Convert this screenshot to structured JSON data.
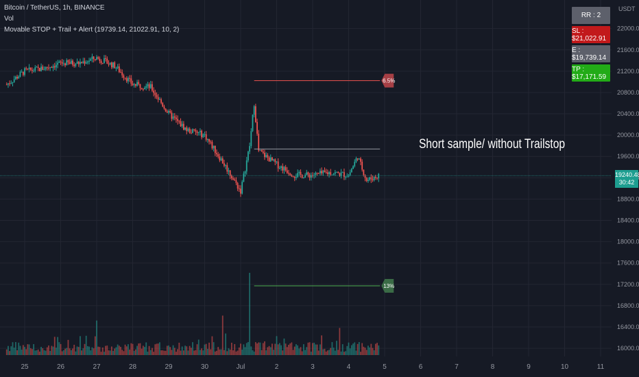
{
  "header": {
    "symbol_line": "Bitcoin / TetherUS, 1h, BINANCE",
    "volume_label": "Vol",
    "indicator_line": "Movable STOP + Trail + Alert (19739.14, 21022.91, 10, 2)"
  },
  "info_panel": {
    "rr": {
      "label": "RR : 2",
      "color": "#5d606b"
    },
    "sl": {
      "label": "SL : $21,022.91",
      "color": "#c2191b"
    },
    "entry": {
      "label": "E : $19,739.14",
      "color": "#5d606b"
    },
    "tp": {
      "label": "TP : $17,171.59",
      "color": "#22ab17"
    }
  },
  "annotation": "Short sample/ without Trailstop",
  "current_price": {
    "price": "19240.48",
    "countdown": "30:42",
    "value": 19240.48
  },
  "colors": {
    "up": "#26a69a",
    "down": "#ef5350",
    "background": "#161a25",
    "grid": "#232632"
  },
  "chart_data": {
    "type": "candlestick",
    "y_axis": {
      "unit": "USDT",
      "ticks": [
        22000,
        21600,
        21200,
        20800,
        20400,
        20000,
        19600,
        19200,
        18800,
        18400,
        18000,
        17600,
        17200,
        16800,
        16400,
        16000
      ],
      "range": [
        15950,
        22150
      ]
    },
    "x_axis": {
      "ticks": [
        "25",
        "26",
        "27",
        "28",
        "29",
        "30",
        "Jul",
        "2",
        "3",
        "4",
        "5",
        "6",
        "7",
        "8",
        "9",
        "10",
        "11"
      ],
      "range_days": [
        "Jun 25",
        "Jul 11"
      ]
    },
    "levels": [
      {
        "name": "stop",
        "price": 21022.91,
        "label": "6.5%",
        "color": "#ef5350"
      },
      {
        "name": "entry",
        "price": 19739.14,
        "color": "#9598a1"
      },
      {
        "name": "take_profit",
        "price": 17171.59,
        "label": "13%",
        "color": "#4caf50"
      }
    ],
    "close_path": [
      {
        "day": "Jun 24 12:00",
        "price": 20950
      },
      {
        "day": "Jun 25 00:00",
        "price": 21200
      },
      {
        "day": "Jun 25 12:00",
        "price": 21250
      },
      {
        "day": "Jun 26 00:00",
        "price": 21350
      },
      {
        "day": "Jun 26 12:00",
        "price": 21350
      },
      {
        "day": "Jun 27 00:00",
        "price": 21450
      },
      {
        "day": "Jun 27 12:00",
        "price": 21300
      },
      {
        "day": "Jun 28 00:00",
        "price": 20950
      },
      {
        "day": "Jun 28 12:00",
        "price": 20900
      },
      {
        "day": "Jun 29 00:00",
        "price": 20400
      },
      {
        "day": "Jun 29 12:00",
        "price": 20100
      },
      {
        "day": "Jun 30 00:00",
        "price": 20000
      },
      {
        "day": "Jun 30 12:00",
        "price": 19500
      },
      {
        "day": "Jul 1 00:00",
        "price": 18950
      },
      {
        "day": "Jul 1 06:00",
        "price": 19800
      },
      {
        "day": "Jul 1 09:00",
        "price": 20600
      },
      {
        "day": "Jul 1 12:00",
        "price": 19700
      },
      {
        "day": "Jul 2 00:00",
        "price": 19450
      },
      {
        "day": "Jul 2 12:00",
        "price": 19250
      },
      {
        "day": "Jul 3 00:00",
        "price": 19250
      },
      {
        "day": "Jul 3 12:00",
        "price": 19300
      },
      {
        "day": "Jul 4 00:00",
        "price": 19250
      },
      {
        "day": "Jul 4 06:00",
        "price": 19600
      },
      {
        "day": "Jul 4 12:00",
        "price": 19150
      },
      {
        "day": "Jul 4 20:00",
        "price": 19240
      }
    ],
    "volume_spikes": [
      {
        "day": "Jul 1 06:00",
        "relative": 1.0
      },
      {
        "day": "Jun 30 12:00",
        "relative": 0.48
      },
      {
        "day": "Jun 27 00:00",
        "relative": 0.42
      }
    ]
  }
}
